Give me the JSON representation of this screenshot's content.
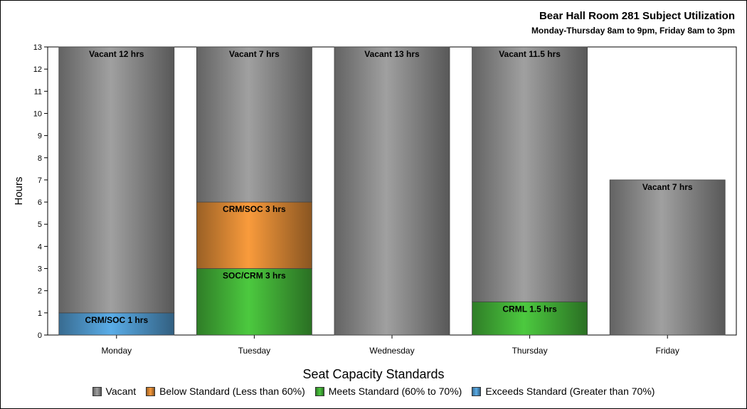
{
  "chart_data": {
    "type": "bar",
    "stacked": true,
    "title": "Bear Hall Room 281 Subject Utilization",
    "subtitle": "Monday-Thursday 8am to 9pm, Friday 8am to 3pm",
    "xlabel": "",
    "ylabel": "Hours",
    "ylim": [
      0,
      13
    ],
    "yticks": [
      0,
      1,
      2,
      3,
      4,
      5,
      6,
      7,
      8,
      9,
      10,
      11,
      12,
      13
    ],
    "categories": [
      "Monday",
      "Tuesday",
      "Wednesday",
      "Thursday",
      "Friday"
    ],
    "segments": [
      [
        {
          "category": "Exceeds",
          "value": 1,
          "label": "CRM/SOC 1 hrs"
        },
        {
          "category": "Vacant",
          "value": 12,
          "label": "Vacant 12 hrs"
        }
      ],
      [
        {
          "category": "Meets",
          "value": 3,
          "label": "SOC/CRM 3 hrs"
        },
        {
          "category": "Below",
          "value": 3,
          "label": "CRM/SOC 3 hrs"
        },
        {
          "category": "Vacant",
          "value": 7,
          "label": "Vacant 7 hrs"
        }
      ],
      [
        {
          "category": "Vacant",
          "value": 13,
          "label": "Vacant 13 hrs"
        }
      ],
      [
        {
          "category": "Meets",
          "value": 1.5,
          "label": "CRML 1.5 hrs"
        },
        {
          "category": "Vacant",
          "value": 11.5,
          "label": "Vacant 11.5 hrs"
        }
      ],
      [
        {
          "category": "Vacant",
          "value": 7,
          "label": "Vacant 7 hrs"
        }
      ]
    ],
    "legend_title": "Seat Capacity Standards",
    "legend": [
      {
        "key": "Vacant",
        "label": "Vacant",
        "color": "#a0a0a0"
      },
      {
        "key": "Below",
        "label": "Below Standard (Less than 60%)",
        "color": "#f99b3c"
      },
      {
        "key": "Meets",
        "label": "Meets Standard (60% to 70%)",
        "color": "#4cc93f"
      },
      {
        "key": "Exceeds",
        "label": "Exceeds Standard (Greater than 70%)",
        "color": "#5aade8"
      }
    ]
  }
}
